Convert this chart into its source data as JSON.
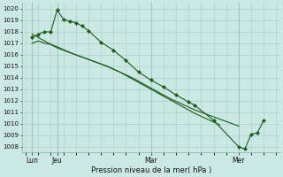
{
  "ylabel": "Pression niveau de la mer( hPa )",
  "ylim": [
    1007.5,
    1020.5
  ],
  "yticks": [
    1008,
    1009,
    1010,
    1011,
    1012,
    1013,
    1014,
    1015,
    1016,
    1017,
    1018,
    1019,
    1020
  ],
  "bg_color": "#cce8e4",
  "grid_color": "#aacfc8",
  "line_color": "#1a5c1a",
  "marker_color": "#1a5c1a",
  "xlim": [
    -0.3,
    20.3
  ],
  "figsize": [
    3.2,
    2.0
  ],
  "dpi": 100,
  "xtick_pos": [
    0.5,
    2.5,
    10.0,
    17.0
  ],
  "xtick_lab": [
    "Lun",
    "Jeu",
    "Mar",
    "Mer"
  ],
  "vlines": [
    0.5,
    2.5,
    10.0,
    17.0
  ],
  "s1_x": [
    0.5,
    1.0,
    1.5,
    2.0,
    2.5,
    3.0,
    3.5,
    4.0,
    4.5,
    5.0,
    6.0,
    7.0,
    8.0,
    9.0,
    10.0,
    11.0,
    12.0,
    13.0,
    13.5,
    15.0,
    17.0,
    17.5,
    18.0,
    18.5,
    19.0
  ],
  "s1_y": [
    1017.5,
    1017.8,
    1018.0,
    1018.0,
    1019.9,
    1019.1,
    1018.9,
    1018.8,
    1018.5,
    1018.1,
    1017.1,
    1016.4,
    1015.5,
    1014.5,
    1013.8,
    1013.2,
    1012.5,
    1011.9,
    1011.6,
    1010.3,
    1008.0,
    1007.8,
    1009.1,
    1009.2,
    1010.3
  ],
  "s2_x": [
    0.5,
    1.0,
    1.5,
    2.0,
    2.5,
    3.5,
    4.5,
    5.5,
    6.5,
    7.5,
    8.5,
    9.5,
    10.5,
    11.5,
    12.5,
    13.5,
    14.5,
    15.5,
    16.5,
    17.0
  ],
  "s2_y": [
    1017.0,
    1017.2,
    1017.0,
    1016.9,
    1016.7,
    1016.2,
    1015.8,
    1015.4,
    1015.0,
    1014.5,
    1014.0,
    1013.4,
    1012.8,
    1012.2,
    1011.7,
    1011.2,
    1010.8,
    1010.4,
    1010.0,
    1009.8
  ],
  "s3_x": [
    0.5,
    1.0,
    1.5,
    2.0,
    2.5,
    3.5,
    4.5,
    5.5,
    6.5,
    7.5,
    8.5,
    9.5,
    10.5,
    11.5,
    12.5,
    13.5,
    14.5,
    15.5
  ],
  "s3_y": [
    1017.8,
    1017.5,
    1017.2,
    1016.9,
    1016.6,
    1016.2,
    1015.8,
    1015.4,
    1015.0,
    1014.5,
    1013.9,
    1013.3,
    1012.7,
    1012.1,
    1011.5,
    1010.9,
    1010.4,
    1009.9
  ]
}
